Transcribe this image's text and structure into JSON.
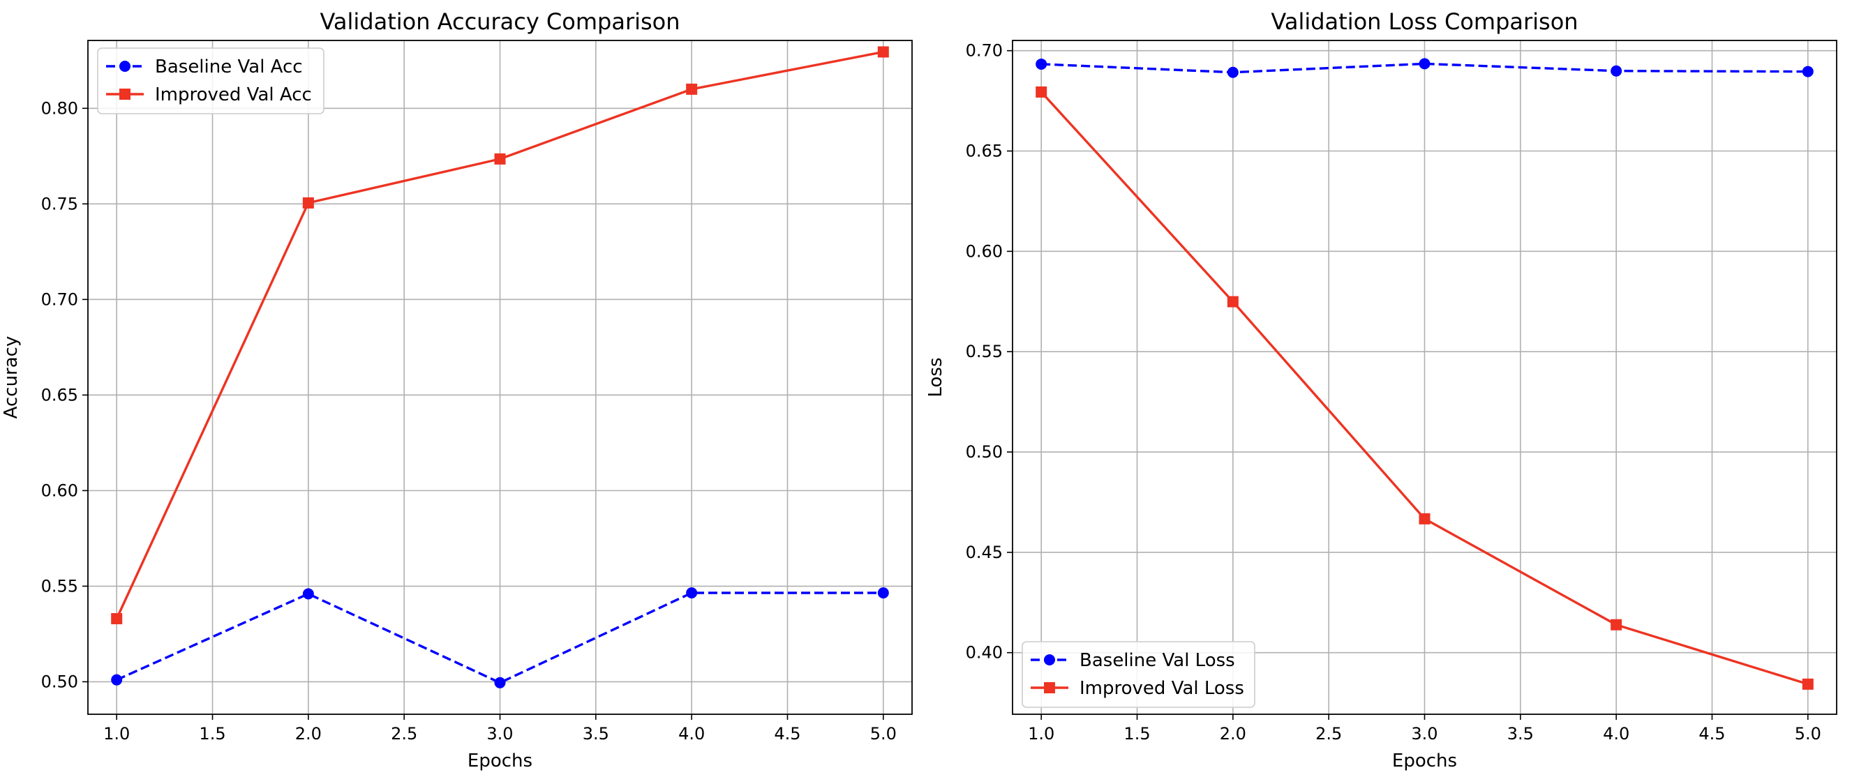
{
  "colors": {
    "baseline": "#0000ff",
    "improved": "#ee3322",
    "grid": "#b0b0b0",
    "axes": "#000000",
    "background": "#ffffff"
  },
  "chart_data": [
    {
      "type": "line",
      "title": "Validation Accuracy Comparison",
      "xlabel": "Epochs",
      "ylabel": "Accuracy",
      "xlim": [
        0.85,
        5.15
      ],
      "ylim": [
        0.483,
        0.8355
      ],
      "xticks": [
        1.0,
        1.5,
        2.0,
        2.5,
        3.0,
        3.5,
        4.0,
        4.5,
        5.0
      ],
      "xtick_labels": [
        "1.0",
        "1.5",
        "2.0",
        "2.5",
        "3.0",
        "3.5",
        "4.0",
        "4.5",
        "5.0"
      ],
      "yticks": [
        0.5,
        0.55,
        0.6,
        0.65,
        0.7,
        0.75,
        0.8
      ],
      "ytick_labels": [
        "0.50",
        "0.55",
        "0.60",
        "0.65",
        "0.70",
        "0.75",
        "0.80"
      ],
      "grid": true,
      "legend_position": "upper left",
      "series": [
        {
          "name": "Baseline Val Acc",
          "x": [
            1,
            2,
            3,
            4,
            5
          ],
          "y": [
            0.501,
            0.546,
            0.4995,
            0.5465,
            0.5465
          ],
          "line_style": "dashed",
          "marker": "circle",
          "color_key": "baseline"
        },
        {
          "name": "Improved Val Acc",
          "x": [
            1,
            2,
            3,
            4,
            5
          ],
          "y": [
            0.533,
            0.7505,
            0.7735,
            0.81,
            0.8295
          ],
          "line_style": "solid",
          "marker": "square",
          "color_key": "improved"
        }
      ]
    },
    {
      "type": "line",
      "title": "Validation Loss Comparison",
      "xlabel": "Epochs",
      "ylabel": "Loss",
      "xlim": [
        0.85,
        5.15
      ],
      "ylim": [
        0.3693,
        0.7051
      ],
      "xticks": [
        1.0,
        1.5,
        2.0,
        2.5,
        3.0,
        3.5,
        4.0,
        4.5,
        5.0
      ],
      "xtick_labels": [
        "1.0",
        "1.5",
        "2.0",
        "2.5",
        "3.0",
        "3.5",
        "4.0",
        "4.5",
        "5.0"
      ],
      "yticks": [
        0.4,
        0.45,
        0.5,
        0.55,
        0.6,
        0.65,
        0.7
      ],
      "ytick_labels": [
        "0.40",
        "0.45",
        "0.50",
        "0.55",
        "0.60",
        "0.65",
        "0.70"
      ],
      "grid": true,
      "legend_position": "lower left",
      "series": [
        {
          "name": "Baseline Val Loss",
          "x": [
            1,
            2,
            3,
            4,
            5
          ],
          "y": [
            0.6933,
            0.6892,
            0.6935,
            0.6899,
            0.6896
          ],
          "line_style": "dashed",
          "marker": "circle",
          "color_key": "baseline"
        },
        {
          "name": "Improved Val Loss",
          "x": [
            1,
            2,
            3,
            4,
            5
          ],
          "y": [
            0.6794,
            0.5749,
            0.4667,
            0.4139,
            0.3843
          ],
          "line_style": "solid",
          "marker": "square",
          "color_key": "improved"
        }
      ]
    }
  ]
}
